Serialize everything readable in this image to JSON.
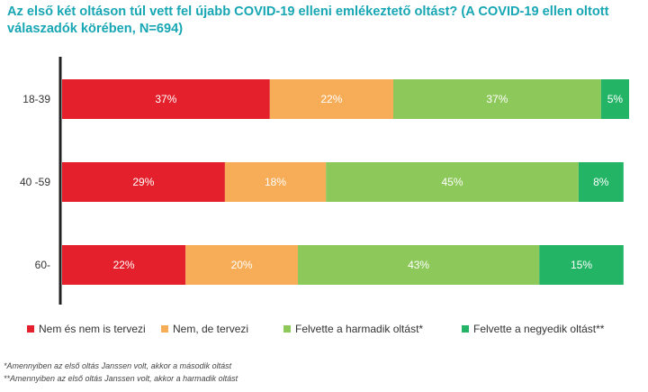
{
  "chart_data": {
    "type": "bar",
    "orientation": "horizontal",
    "stacked": true,
    "title": "Az első két oltáson túl vett fel újabb COVID-19 elleni emlékeztető oltást? (A COVID-19 ellen oltott válaszadók körében, N=694)",
    "categories": [
      "18-39",
      "40 -59",
      "60-"
    ],
    "series": [
      {
        "name": "Nem és nem is tervezi",
        "color": "#e3202b",
        "values": [
          37,
          29,
          22
        ],
        "labels": [
          "37%",
          "29%",
          "22%"
        ]
      },
      {
        "name": "Nem, de tervezi",
        "color": "#f7ac57",
        "values": [
          22,
          18,
          20
        ],
        "labels": [
          "22%",
          "18%",
          "20%"
        ]
      },
      {
        "name": "Felvette a harmadik oltást*",
        "color": "#8dc85a",
        "values": [
          37,
          45,
          43
        ],
        "labels": [
          "37%",
          "45%",
          "43%"
        ]
      },
      {
        "name": "Felvette a negyedik oltást**",
        "color": "#23b565",
        "values": [
          5,
          8,
          15
        ],
        "labels": [
          "5%",
          "8%",
          "15%"
        ]
      }
    ],
    "xlim": [
      0,
      101
    ],
    "legend_position": "bottom",
    "footnotes": [
      "*Amennyiben az első oltás Janssen volt, akkor a második oltást",
      "**Amennyiben az első oltás Janssen volt, akkor a harmadik oltást"
    ]
  }
}
